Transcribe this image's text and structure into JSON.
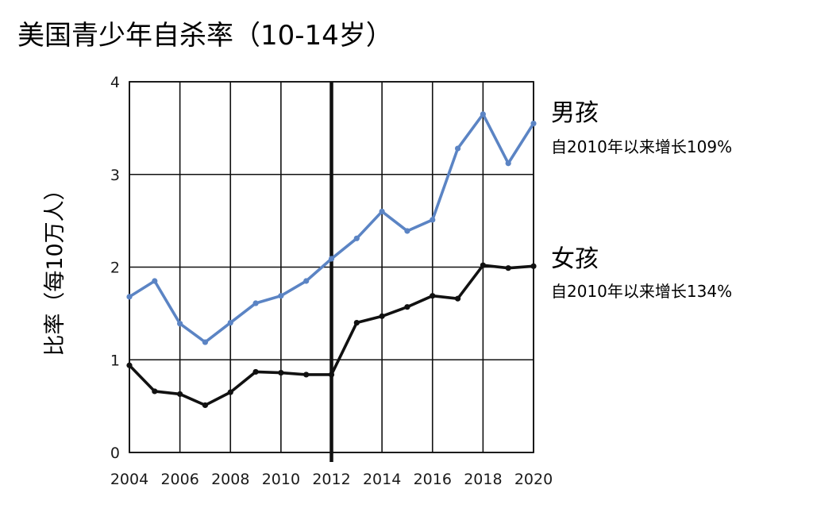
{
  "chart_data": {
    "type": "line",
    "title": "美国青少年自杀率（10-14岁）",
    "xlabel": "",
    "ylabel": "比率（每10万人）",
    "x": [
      2004,
      2005,
      2006,
      2007,
      2008,
      2009,
      2010,
      2011,
      2012,
      2013,
      2014,
      2015,
      2016,
      2017,
      2018,
      2019,
      2020
    ],
    "xlim": [
      2004,
      2020
    ],
    "ylim": [
      0,
      4
    ],
    "xticks": [
      "2004",
      "2006",
      "2008",
      "2010",
      "2012",
      "2014",
      "2016",
      "2018",
      "2020"
    ],
    "yticks": [
      "0",
      "1",
      "2",
      "3",
      "4"
    ],
    "grid": true,
    "marker_line_x": 2012,
    "legend_placement": "right",
    "series": [
      {
        "name": "男孩",
        "note": "自2010年以来增长109%",
        "color": "#5b84c4",
        "values": [
          1.68,
          1.85,
          1.39,
          1.19,
          1.4,
          1.61,
          1.69,
          1.85,
          2.09,
          2.31,
          2.6,
          2.39,
          2.51,
          3.28,
          3.65,
          3.12,
          3.55
        ]
      },
      {
        "name": "女孩",
        "note": "自2010年以来增长134%",
        "color": "#111111",
        "values": [
          0.94,
          0.66,
          0.63,
          0.51,
          0.65,
          0.87,
          0.86,
          0.84,
          0.84,
          1.4,
          1.47,
          1.57,
          1.69,
          1.66,
          2.02,
          1.99,
          2.01
        ]
      }
    ]
  }
}
